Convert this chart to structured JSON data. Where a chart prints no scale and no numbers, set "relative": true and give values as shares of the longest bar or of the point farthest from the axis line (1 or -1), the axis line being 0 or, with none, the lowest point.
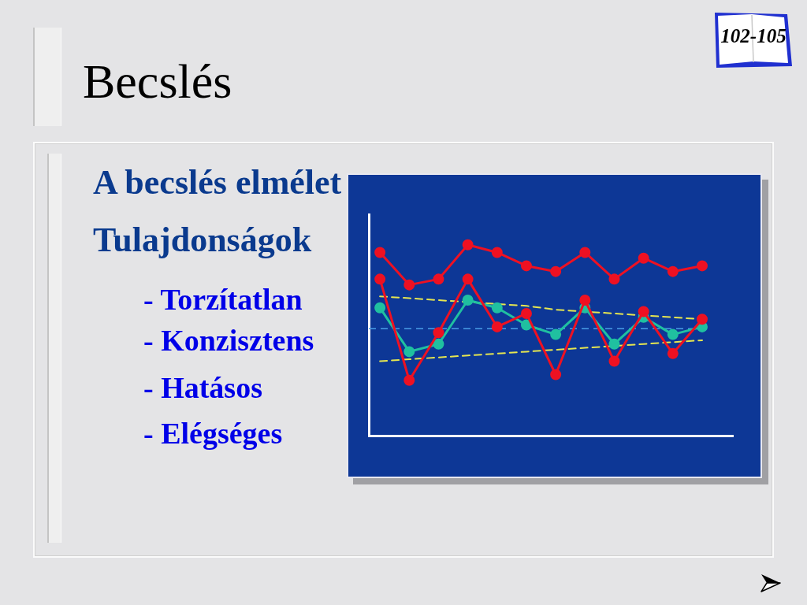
{
  "chart_data": {
    "type": "line",
    "title": "Becslés",
    "subtitle": "A becslés elmélet",
    "annotations": [
      "Tulajdonságok",
      "- Torzítatlan",
      "- Konzisztens",
      "- Hatásos",
      "- Elégséges",
      "102-105"
    ],
    "categories": [
      null,
      null,
      null,
      null,
      null,
      null,
      null,
      null,
      null,
      null,
      null,
      null
    ],
    "relative": true,
    "marker": "circle",
    "series": [
      {
        "color": "#ee1122",
        "values": [
          0.96,
          0.79,
          0.82,
          1,
          0.96,
          0.89,
          0.86,
          0.96,
          0.82,
          0.93,
          0.86,
          0.89
        ]
      },
      {
        "color": "#ee1122",
        "values": [
          0.82,
          0.29,
          0.54,
          0.82,
          0.57,
          0.64,
          0.32,
          0.71,
          0.39,
          0.65,
          0.43,
          0.61
        ]
      },
      {
        "color": "#20c0a0",
        "values": [
          0.67,
          0.44,
          0.48,
          0.71,
          0.67,
          0.58,
          0.53,
          0.67,
          0.48,
          0.62,
          0.53,
          0.57
        ]
      },
      {
        "color": "#e6e650",
        "line_style": "dashed",
        "marker": "none",
        "values": [
          0.73,
          0.72,
          0.71,
          0.7,
          0.69,
          0.68,
          0.66,
          0.65,
          0.64,
          0.63,
          0.62,
          0.61
        ]
      },
      {
        "color": "#e6e650",
        "line_style": "dashed",
        "marker": "none",
        "values": [
          0.39,
          0.4,
          0.41,
          0.42,
          0.43,
          0.44,
          0.45,
          0.46,
          0.47,
          0.48,
          0.49,
          0.5
        ]
      }
    ],
    "ref_lines": [
      {
        "axis": "y",
        "value": 0.56,
        "color": "#4a9ee6",
        "line_style": "dashed"
      }
    ]
  }
}
